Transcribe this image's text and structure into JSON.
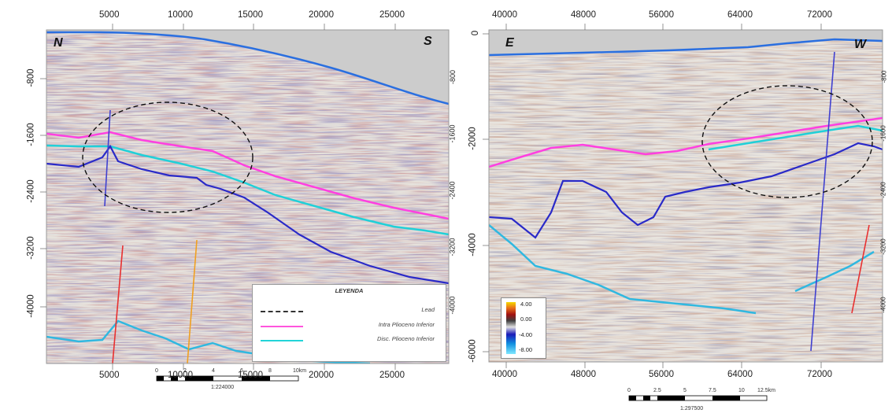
{
  "left_panel": {
    "x_ticks": [
      "5000",
      "10000",
      "15000",
      "20000",
      "25000"
    ],
    "y_ticks": [
      "-800",
      "-1600",
      "-2400",
      "-3200",
      "-4000"
    ],
    "y_ticks_right": [
      "-800",
      "-1600",
      "-2400",
      "-3200",
      "-4000"
    ],
    "dir_left": "N",
    "dir_right": "S",
    "scale_ticks": [
      "0",
      "2",
      "4",
      "6",
      "8",
      "10km"
    ],
    "scale_ratio": "1:224000"
  },
  "right_panel": {
    "x_ticks": [
      "40000",
      "48000",
      "56000",
      "64000",
      "72000"
    ],
    "y_ticks": [
      "0",
      "-2000",
      "-4000",
      "-6000"
    ],
    "y_ticks_right": [
      "-800",
      "-1600",
      "-2400",
      "-3200",
      "-4000"
    ],
    "dir_left": "E",
    "dir_right": "W",
    "scale_ticks": [
      "0",
      "2.5",
      "5",
      "7.5",
      "10",
      "12.5km"
    ],
    "scale_ratio": "1:297500"
  },
  "legend": {
    "title": "LEYENDA",
    "items": [
      {
        "label": "Lead",
        "color": "#333333",
        "style": "dashed"
      },
      {
        "label": "Intra Plioceno Inferior",
        "color": "#ff55dd",
        "style": "solid"
      },
      {
        "label": "Disc. Plioceno Inferior",
        "color": "#22d4d8",
        "style": "solid"
      }
    ]
  },
  "colorbar": {
    "labels": [
      "4.00",
      "0.00",
      "-4.00",
      "-8.00"
    ],
    "colors": [
      "#f5d800",
      "#e86a1a",
      "#b01010",
      "#505050",
      "#d9d9d9",
      "#2020c0",
      "#1090e0",
      "#7fe0ff"
    ]
  },
  "colors": {
    "seafloor": "#2a6fe0",
    "horizon_magenta": "#ff40e0",
    "horizon_cyan": "#20d0d8",
    "horizon_blue": "#2a2ac8",
    "horizon_cyan_deep": "#30b8e0",
    "well_blue": "#4040d0",
    "well_red": "#e83030",
    "well_orange": "#f0a020",
    "water": "#cccccc"
  }
}
